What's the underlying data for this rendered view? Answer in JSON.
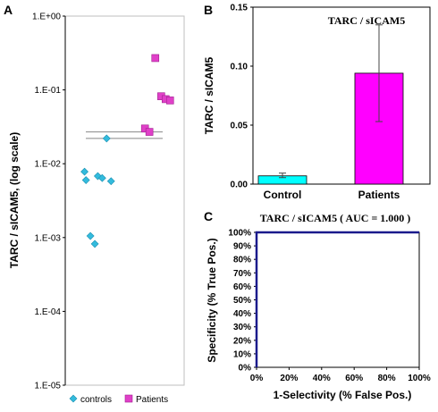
{
  "chart_data": [
    {
      "panel": "A",
      "type": "scatter",
      "title": "",
      "xlabel": "",
      "ylabel": "TARC / sICAM5, (log scale)",
      "yscale": "log",
      "ylim": [
        1e-05,
        1
      ],
      "yticks": [
        "1.E-05",
        "1.E-04",
        "1.E-03",
        "1.E-02",
        "1.E-01",
        "1.E+00"
      ],
      "legend_position": "bottom",
      "grid": false,
      "series": [
        {
          "name": "controls",
          "color": "#33bbdd",
          "marker": "diamond",
          "points": [
            {
              "x": 1.1,
              "y": 0.022
            },
            {
              "x": 0.35,
              "y": 0.0078
            },
            {
              "x": 0.4,
              "y": 0.006
            },
            {
              "x": 0.8,
              "y": 0.0068
            },
            {
              "x": 0.95,
              "y": 0.0064
            },
            {
              "x": 1.25,
              "y": 0.0058
            },
            {
              "x": 0.55,
              "y": 0.00105
            },
            {
              "x": 0.7,
              "y": 0.00082
            }
          ]
        },
        {
          "name": "Patients",
          "color": "#e040c8",
          "marker": "square",
          "points": [
            {
              "x": 2.75,
              "y": 0.27
            },
            {
              "x": 2.95,
              "y": 0.082
            },
            {
              "x": 3.1,
              "y": 0.075
            },
            {
              "x": 3.25,
              "y": 0.072
            },
            {
              "x": 2.4,
              "y": 0.03
            },
            {
              "x": 2.55,
              "y": 0.027
            }
          ]
        }
      ],
      "reference_lines": [
        0.027,
        0.022
      ]
    },
    {
      "panel": "B",
      "type": "bar",
      "title": "TARC / sICAM5",
      "xlabel": "",
      "ylabel": "TARC / sICAM5",
      "ylim": [
        0,
        0.15
      ],
      "yticks": [
        "0.00",
        "0.05",
        "0.10",
        "0.15"
      ],
      "categories": [
        "Control",
        "Patients"
      ],
      "values": [
        0.007,
        0.094
      ],
      "error_low": [
        0.0055,
        0.053
      ],
      "error_high": [
        0.0093,
        0.135
      ],
      "colors": [
        "#00ffff",
        "#ff00ff"
      ]
    },
    {
      "panel": "C",
      "type": "line",
      "title": "TARC / sICAM5  ( AUC = 1.000 )",
      "xlabel": "1-Selectivity (% False Pos.)",
      "ylabel": "Specificity (% True Pos.)",
      "xlim": [
        0,
        100
      ],
      "ylim": [
        0,
        100
      ],
      "xticks": [
        "0%",
        "20%",
        "40%",
        "60%",
        "80%",
        "100%"
      ],
      "yticks": [
        "0%",
        "10%",
        "20%",
        "30%",
        "40%",
        "50%",
        "60%",
        "70%",
        "80%",
        "90%",
        "100%"
      ],
      "series": [
        {
          "color": "#1a1a8c",
          "x": [
            0,
            0,
            100
          ],
          "y": [
            0,
            100,
            100
          ]
        }
      ]
    }
  ]
}
